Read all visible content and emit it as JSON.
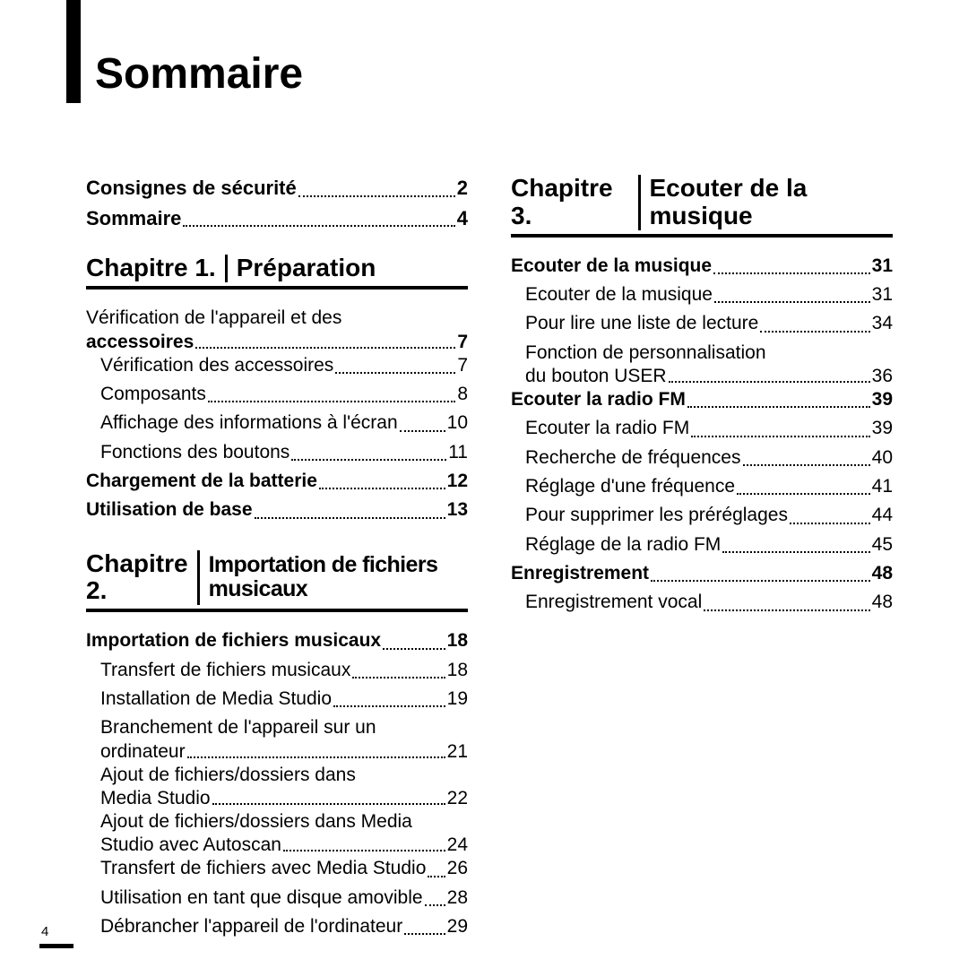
{
  "page_number": "4",
  "title": "Sommaire",
  "left": {
    "pre": [
      {
        "label": "Consignes de sécurité",
        "page": "2",
        "bold": true
      },
      {
        "label": "Sommaire",
        "page": "4",
        "bold": true
      }
    ],
    "ch1": {
      "num": "Chapitre 1.",
      "title": "Préparation",
      "items": [
        {
          "label_first": "Vérification de l'appareil et des",
          "label_cont": "accessoires",
          "page": "7",
          "bold": true,
          "multiline": true
        },
        {
          "label": "Vérification des accessoires",
          "page": "7",
          "indent": true
        },
        {
          "label": "Composants",
          "page": "8",
          "indent": true
        },
        {
          "label": "Affichage des informations à l'écran",
          "page": "10",
          "indent": true
        },
        {
          "label": "Fonctions des boutons",
          "page": "11",
          "indent": true
        },
        {
          "label": "Chargement de la batterie",
          "page": "12",
          "bold": true
        },
        {
          "label": "Utilisation de base",
          "page": "13",
          "bold": true
        }
      ]
    },
    "ch2": {
      "num": "Chapitre 2.",
      "title": "Importation de fichiers musicaux",
      "condensed": true,
      "items": [
        {
          "label": "Importation de fichiers musicaux",
          "page": "18",
          "bold": true
        },
        {
          "label": "Transfert de fichiers musicaux",
          "page": "18",
          "indent": true
        },
        {
          "label": "Installation de Media Studio",
          "page": "19",
          "indent": true
        },
        {
          "label_first": "Branchement de l'appareil sur un",
          "label_cont": "ordinateur",
          "page": "21",
          "indent": true,
          "multiline": true
        },
        {
          "label_first": "Ajout de fichiers/dossiers dans",
          "label_cont": "Media Studio",
          "page": "22",
          "indent": true,
          "multiline": true
        },
        {
          "label_first": "Ajout de fichiers/dossiers dans Media",
          "label_cont": "Studio avec Autoscan",
          "page": "24",
          "indent": true,
          "multiline": true
        },
        {
          "label": "Transfert de fichiers avec Media Studio",
          "page": "26",
          "indent": true
        },
        {
          "label": "Utilisation en tant que disque amovible",
          "page": "28",
          "indent": true
        },
        {
          "label": "Débrancher l'appareil de l'ordinateur",
          "page": "29",
          "indent": true
        }
      ]
    }
  },
  "right": {
    "ch3": {
      "num": "Chapitre 3.",
      "title": "Ecouter de la musique",
      "items": [
        {
          "label": "Ecouter de la musique",
          "page": "31",
          "bold": true
        },
        {
          "label": "Ecouter de la musique",
          "page": "31",
          "indent": true
        },
        {
          "label": "Pour lire une liste de lecture",
          "page": "34",
          "indent": true
        },
        {
          "label_first": "Fonction de personnalisation",
          "label_cont": "du bouton USER",
          "page": "36",
          "indent": true,
          "multiline": true
        },
        {
          "label": "Ecouter la radio FM",
          "page": "39",
          "bold": true
        },
        {
          "label": "Ecouter la radio FM",
          "page": "39",
          "indent": true
        },
        {
          "label": "Recherche de fréquences",
          "page": "40",
          "indent": true
        },
        {
          "label": "Réglage d'une fréquence",
          "page": "41",
          "indent": true
        },
        {
          "label": "Pour supprimer les préréglages",
          "page": "44",
          "indent": true
        },
        {
          "label": "Réglage de la radio FM",
          "page": "45",
          "indent": true
        },
        {
          "label": "Enregistrement",
          "page": "48",
          "bold": true
        },
        {
          "label": "Enregistrement vocal",
          "page": "48",
          "indent": true
        }
      ]
    }
  }
}
